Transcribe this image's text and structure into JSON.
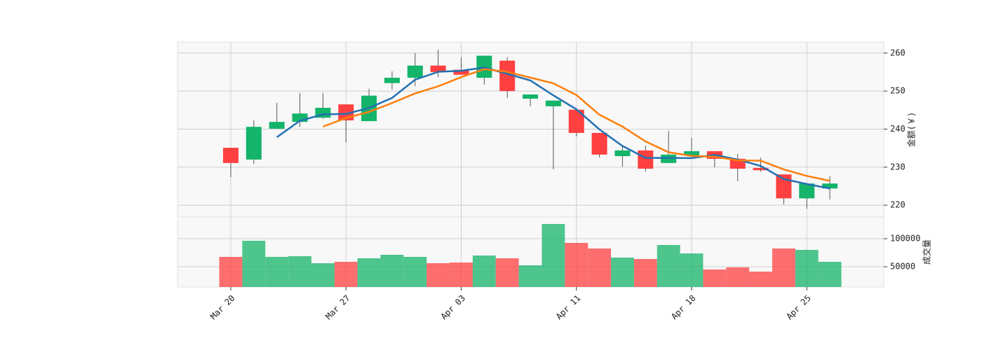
{
  "chart_data": {
    "type": "candlestick",
    "categories": [
      "Mar 20",
      null,
      null,
      null,
      null,
      "Mar 27",
      null,
      null,
      null,
      null,
      "Apr 03",
      null,
      null,
      null,
      null,
      "Apr 11",
      null,
      null,
      null,
      null,
      "Apr 18",
      null,
      null,
      null,
      null,
      "Apr 25",
      null
    ],
    "open": [
      235.1,
      232.0,
      240.1,
      241.9,
      243.0,
      246.5,
      242.1,
      252.1,
      253.5,
      256.7,
      255.6,
      253.5,
      258.0,
      248.0,
      246.0,
      245.1,
      239.0,
      232.9,
      234.4,
      231.1,
      233.1,
      234.2,
      232.2,
      229.8,
      228.1,
      221.8,
      224.4
    ],
    "high": [
      235.1,
      242.3,
      246.9,
      249.5,
      249.5,
      246.5,
      250.6,
      255.2,
      260.0,
      260.9,
      258.9,
      259.3,
      258.9,
      249.1,
      247.5,
      245.1,
      239.0,
      235.7,
      235.7,
      239.5,
      237.7,
      234.2,
      233.5,
      232.5,
      228.1,
      225.7,
      227.6
    ],
    "low": [
      227.4,
      230.9,
      240.1,
      240.6,
      242.7,
      236.6,
      242.1,
      250.4,
      251.3,
      253.7,
      254.3,
      251.7,
      248.2,
      246.0,
      229.4,
      238.1,
      232.5,
      230.1,
      228.8,
      231.1,
      233.1,
      230.0,
      226.3,
      228.8,
      220.2,
      219.1,
      221.5
    ],
    "close": [
      231.1,
      240.6,
      241.9,
      244.1,
      245.6,
      242.3,
      248.8,
      253.5,
      256.7,
      255.0,
      254.3,
      259.3,
      250.0,
      249.1,
      247.5,
      239.0,
      233.3,
      234.4,
      229.6,
      233.3,
      234.2,
      232.2,
      229.6,
      229.2,
      221.8,
      225.7,
      225.7
    ],
    "up_color": "#14b46a",
    "down_color": "#ff4040",
    "ylim": [
      216.9,
      262.9
    ],
    "yticks": [
      220,
      230,
      240,
      250,
      260
    ],
    "ylabel": "金额(￥)",
    "grid": true,
    "series": [
      {
        "color": "#2271b3",
        "values": [
          null,
          null,
          237.87,
          242.2,
          243.87,
          244.0,
          245.57,
          248.2,
          253.0,
          255.07,
          255.33,
          256.2,
          254.53,
          252.8,
          248.87,
          245.2,
          239.93,
          235.57,
          232.43,
          232.43,
          232.37,
          233.23,
          232.0,
          230.33,
          226.87,
          225.57,
          224.4
        ]
      },
      {
        "color": "#ff7f0e",
        "values": [
          null,
          null,
          null,
          null,
          240.66,
          242.9,
          244.54,
          246.86,
          249.38,
          251.26,
          253.66,
          255.76,
          255.06,
          253.54,
          252.04,
          248.98,
          243.78,
          240.66,
          236.76,
          233.92,
          232.96,
          232.74,
          231.78,
          231.7,
          229.4,
          227.7,
          226.4
        ]
      }
    ],
    "volume": {
      "values": [
        67500,
        96250,
        67500,
        68750,
        56250,
        58750,
        65000,
        71250,
        67500,
        56250,
        57500,
        70000,
        65000,
        52500,
        126250,
        92500,
        82500,
        66250,
        63750,
        88750,
        73750,
        45000,
        48750,
        41250,
        82500,
        80000,
        58750
      ],
      "ylim": [
        13750,
        138750
      ],
      "yticks": [
        50000,
        100000
      ],
      "ylabel": "成交量"
    }
  }
}
